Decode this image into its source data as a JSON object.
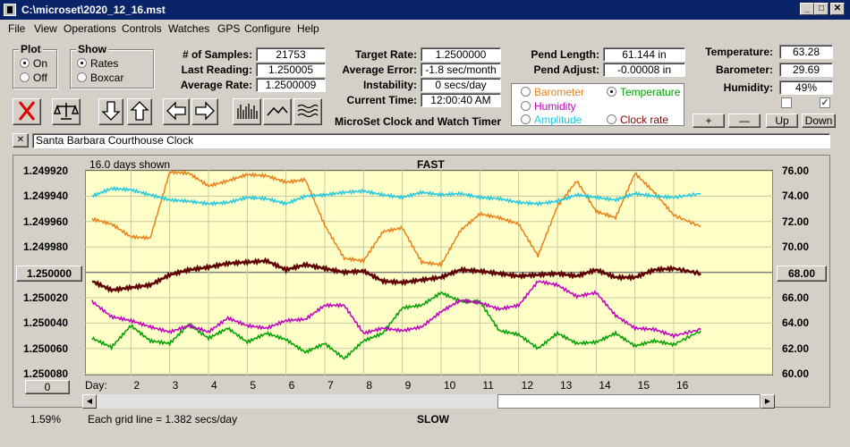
{
  "window": {
    "title": "C:\\microset\\2020_12_16.mst"
  },
  "titlebar_buttons": [
    "_",
    "□",
    "✕"
  ],
  "menu": [
    "File",
    "View",
    "Operations",
    "Controls",
    "Watches",
    "GPS",
    "Configure",
    "Help"
  ],
  "plot_group": {
    "title": "Plot",
    "on": "On",
    "off": "Off",
    "selected": "On"
  },
  "show_group": {
    "title": "Show",
    "rates": "Rates",
    "boxcar": "Boxcar",
    "selected": "Rates"
  },
  "stats": {
    "samples_label": "# of Samples:",
    "samples": "21753",
    "last_label": "Last Reading:",
    "last": "1.250005",
    "avg_label": "Average Rate:",
    "avg": "1.2500009"
  },
  "rates": {
    "target_label": "Target Rate:",
    "target": "1.2500000",
    "error_label": "Average Error:",
    "error": "-1.8 sec/month",
    "instab_label": "Instability:",
    "instab": "0 secs/day",
    "time_label": "Current Time:",
    "time": "12:00:40 AM"
  },
  "pend": {
    "length_label": "Pend Length:",
    "length": "61.144 in",
    "adjust_label": "Pend Adjust:",
    "adjust": "-0.00008 in"
  },
  "env": {
    "temp_label": "Temperature:",
    "temp": "63.28",
    "baro_label": "Barometer:",
    "baro": "29.69",
    "hum_label": "Humidity:",
    "hum": "49%"
  },
  "plot_select": {
    "barometer": "Barometer",
    "temperature": "Temperature",
    "humidity": "Humidity",
    "amplitude": "Amplitude",
    "clockrate": "Clock rate",
    "selected": "Temperature",
    "colors": {
      "barometer": "#e8801c",
      "temperature": "#00a000",
      "humidity": "#c000c0",
      "amplitude": "#20c8e0",
      "clockrate": "#600000"
    }
  },
  "env_buttons": {
    "plus": "+",
    "minus": "—",
    "up": "Up",
    "down": "Down"
  },
  "checkboxes": {
    "left": "",
    "right": "✓"
  },
  "app_caption": "MicroSet Clock and Watch Timer",
  "clock_name": "Santa Barbara Courthouse Clock",
  "close_x": "✕",
  "graph": {
    "days_shown": "16.0 days shown",
    "top_label": "FAST",
    "bottom_label": "SLOW",
    "day_label": "Day:",
    "grid_note": "Each grid line = 1.382 secs/day",
    "percent": "1.59%",
    "center_left": "1.250000",
    "center_right": "68.00",
    "zero_btn": "0",
    "left_ticks": [
      "1.249920",
      "1.249940",
      "1.249960",
      "1.249980",
      "1.250000",
      "1.250020",
      "1.250040",
      "1.250060",
      "1.250080"
    ],
    "right_ticks": [
      "76.00",
      "74.00",
      "72.00",
      "70.00",
      "68.00",
      "66.00",
      "64.00",
      "62.00",
      "60.00"
    ],
    "day_ticks": [
      "2",
      "3",
      "4",
      "5",
      "6",
      "7",
      "8",
      "9",
      "10",
      "11",
      "12",
      "13",
      "14",
      "15",
      "16"
    ]
  },
  "chart_data": {
    "type": "line",
    "x": [
      1.0,
      1.5,
      2.0,
      2.5,
      3.0,
      3.5,
      4.0,
      4.5,
      5.0,
      5.5,
      6.0,
      6.5,
      7.0,
      7.5,
      8.0,
      8.5,
      9.0,
      9.5,
      10.0,
      10.5,
      11.0,
      11.5,
      12.0,
      12.5,
      13.0,
      13.5,
      14.0,
      14.5,
      15.0,
      15.5,
      16.0,
      16.7
    ],
    "right_axis_range": [
      60,
      76
    ],
    "left_axis_range": [
      1.24992,
      1.25008
    ],
    "series": [
      {
        "name": "Barometer",
        "color": "#e8801c",
        "values": [
          72.2,
          71.8,
          70.8,
          70.7,
          75.9,
          75.8,
          74.8,
          75.2,
          75.7,
          75.6,
          75.1,
          75.3,
          71.7,
          69.1,
          68.9,
          71.2,
          71.5,
          68.8,
          68.6,
          71.3,
          72.6,
          72.3,
          71.8,
          69.3,
          73.2,
          75.2,
          72.8,
          72.3,
          75.8,
          74.3,
          72.5,
          71.6
        ]
      },
      {
        "name": "Temperature",
        "color": "#00a000",
        "values": [
          62.8,
          62.1,
          63.8,
          62.6,
          62.4,
          63.9,
          62.8,
          63.6,
          62.5,
          63.2,
          62.7,
          61.7,
          62.4,
          61.2,
          62.6,
          63.2,
          65.2,
          65.4,
          66.4,
          65.7,
          65.7,
          63.4,
          63.1,
          62.0,
          63.2,
          62.4,
          62.5,
          63.2,
          62.2,
          62.6,
          62.3,
          63.4
        ]
      },
      {
        "name": "Humidity",
        "color": "#c000c0",
        "values": [
          65.7,
          64.5,
          64.2,
          63.7,
          63.3,
          63.8,
          63.3,
          64.4,
          63.8,
          63.6,
          64.2,
          64.3,
          65.4,
          65.4,
          63.2,
          63.6,
          63.4,
          63.7,
          64.9,
          65.8,
          65.6,
          65.1,
          65.4,
          67.3,
          67.0,
          66.1,
          66.4,
          64.6,
          63.6,
          63.5,
          63.0,
          63.5
        ]
      },
      {
        "name": "Amplitude",
        "color": "#20c8e0",
        "values": [
          74.0,
          74.6,
          74.5,
          74.1,
          73.7,
          73.6,
          73.4,
          73.5,
          73.9,
          73.8,
          73.4,
          74.0,
          74.1,
          74.3,
          74.4,
          74.1,
          73.9,
          74.3,
          74.1,
          74.2,
          73.9,
          73.8,
          73.5,
          73.4,
          73.6,
          74.1,
          73.9,
          73.7,
          74.2,
          74.0,
          73.9,
          74.2
        ]
      },
      {
        "name": "Clock rate",
        "color": "#600000",
        "values": [
          67.3,
          66.6,
          66.8,
          67.0,
          67.8,
          68.2,
          68.4,
          68.7,
          68.8,
          68.9,
          68.2,
          68.6,
          68.3,
          68.0,
          68.1,
          67.3,
          67.2,
          67.4,
          67.6,
          68.2,
          68.1,
          67.9,
          67.7,
          67.8,
          67.9,
          67.7,
          68.2,
          67.6,
          67.6,
          68.2,
          68.3,
          67.9
        ]
      }
    ]
  }
}
